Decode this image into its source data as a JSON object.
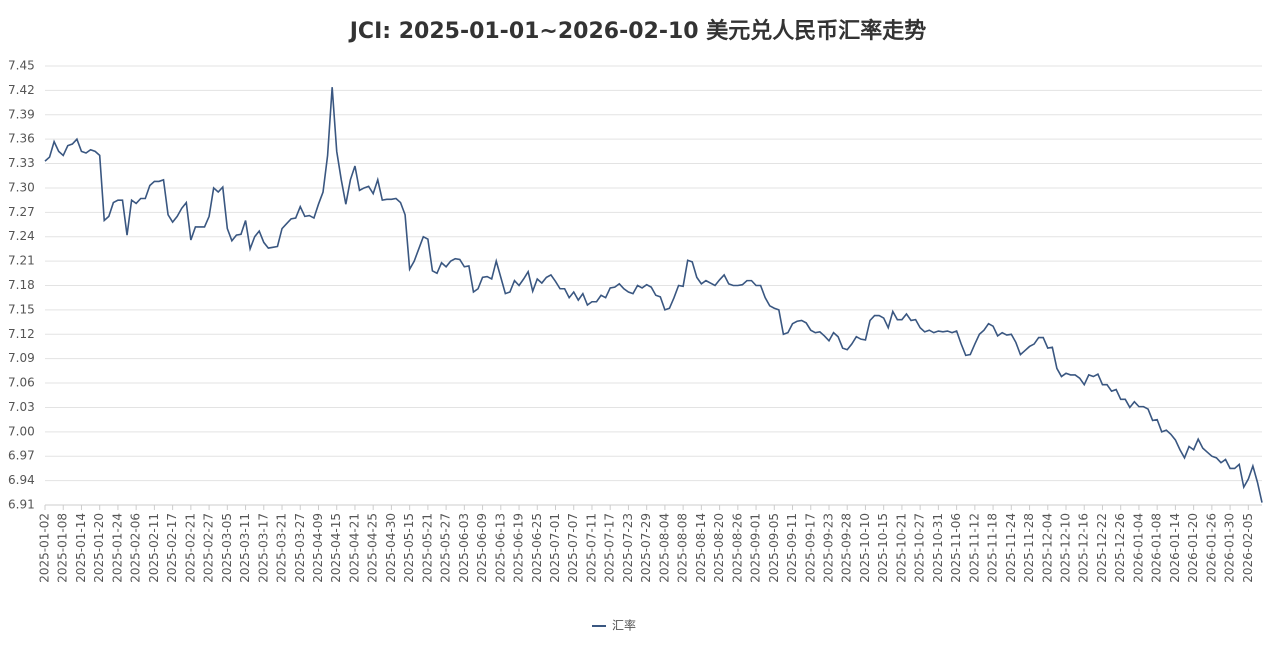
{
  "chart_data": {
    "type": "line",
    "title": "JCI: 2025-01-01~2026-02-10 美元兑人民币汇率走势",
    "categories": [
      "2025-01-02",
      null,
      null,
      null,
      "2025-01-08",
      null,
      null,
      null,
      "2025-01-14",
      null,
      null,
      null,
      "2025-01-20",
      null,
      null,
      null,
      "2025-01-24",
      null,
      null,
      null,
      "2025-02-06",
      null,
      null,
      null,
      "2025-02-11",
      null,
      null,
      null,
      "2025-02-17",
      null,
      null,
      null,
      "2025-02-21",
      null,
      null,
      null,
      "2025-02-27",
      null,
      null,
      null,
      "2025-03-05",
      null,
      null,
      null,
      "2025-03-11",
      null,
      null,
      null,
      "2025-03-17",
      null,
      null,
      null,
      "2025-03-21",
      null,
      null,
      null,
      "2025-03-27",
      null,
      null,
      null,
      "2025-04-09",
      null,
      null,
      null,
      "2025-04-15",
      null,
      null,
      null,
      "2025-04-21",
      null,
      null,
      null,
      "2025-04-25",
      null,
      null,
      null,
      "2025-04-30",
      null,
      null,
      null,
      "2025-05-15",
      null,
      null,
      null,
      "2025-05-21",
      null,
      null,
      null,
      "2025-05-27",
      null,
      null,
      null,
      "2025-06-03",
      null,
      null,
      null,
      "2025-06-09",
      null,
      null,
      null,
      "2025-06-13",
      null,
      null,
      null,
      "2025-06-19",
      null,
      null,
      null,
      "2025-06-25",
      null,
      null,
      null,
      "2025-07-01",
      null,
      null,
      null,
      "2025-07-07",
      null,
      null,
      null,
      "2025-07-11",
      null,
      null,
      null,
      "2025-07-17",
      null,
      null,
      null,
      "2025-07-23",
      null,
      null,
      null,
      "2025-07-29",
      null,
      null,
      null,
      "2025-08-04",
      null,
      null,
      null,
      "2025-08-08",
      null,
      null,
      null,
      "2025-08-14",
      null,
      null,
      null,
      "2025-08-20",
      null,
      null,
      null,
      "2025-08-26",
      null,
      null,
      null,
      "2025-09-01",
      null,
      null,
      null,
      "2025-09-05",
      null,
      null,
      null,
      "2025-09-11",
      null,
      null,
      null,
      "2025-09-17",
      null,
      null,
      null,
      "2025-09-23",
      null,
      null,
      null,
      "2025-09-28",
      null,
      null,
      null,
      "2025-10-10",
      null,
      null,
      null,
      "2025-10-15",
      null,
      null,
      null,
      "2025-10-21",
      null,
      null,
      null,
      "2025-10-27",
      null,
      null,
      null,
      "2025-10-31",
      null,
      null,
      null,
      "2025-11-06",
      null,
      null,
      null,
      "2025-11-12",
      null,
      null,
      null,
      "2025-11-18",
      null,
      null,
      null,
      "2025-11-24",
      null,
      null,
      null,
      "2025-11-28",
      null,
      null,
      null,
      "2025-12-04",
      null,
      null,
      null,
      "2025-12-10",
      null,
      null,
      null,
      "2025-12-16",
      null,
      null,
      null,
      "2025-12-22",
      null,
      null,
      null,
      "2025-12-26",
      null,
      null,
      null,
      "2026-01-04",
      null,
      null,
      null,
      "2026-01-08",
      null,
      null,
      null,
      "2026-01-14",
      null,
      null,
      null,
      "2026-01-20",
      null,
      null,
      null,
      "2026-01-26",
      null,
      null,
      null,
      "2026-01-30",
      null,
      null,
      null,
      "2026-02-05",
      null,
      null,
      null
    ],
    "series": [
      {
        "name": "汇率",
        "color": "#3a5781",
        "values": [
          7.333,
          7.338,
          7.357,
          7.345,
          7.34,
          7.352,
          7.354,
          7.36,
          7.345,
          7.343,
          7.347,
          7.345,
          7.34,
          7.26,
          7.265,
          7.282,
          7.285,
          7.285,
          7.242,
          7.285,
          7.281,
          7.287,
          7.287,
          7.303,
          7.308,
          7.308,
          7.31,
          7.267,
          7.258,
          7.265,
          7.275,
          7.282,
          7.236,
          7.252,
          7.252,
          7.252,
          7.265,
          7.3,
          7.295,
          7.301,
          7.25,
          7.235,
          7.242,
          7.243,
          7.26,
          7.225,
          7.24,
          7.247,
          7.233,
          7.226,
          7.227,
          7.228,
          7.25,
          7.256,
          7.262,
          7.263,
          7.277,
          7.265,
          7.266,
          7.263,
          7.28,
          7.295,
          7.34,
          7.424,
          7.345,
          7.31,
          7.28,
          7.31,
          7.327,
          7.297,
          7.3,
          7.302,
          7.293,
          7.31,
          7.285,
          7.286,
          7.286,
          7.287,
          7.282,
          7.267,
          7.2,
          7.21,
          7.225,
          7.24,
          7.237,
          7.198,
          7.195,
          7.208,
          7.203,
          7.21,
          7.213,
          7.212,
          7.203,
          7.204,
          7.172,
          7.176,
          7.19,
          7.191,
          7.188,
          7.21,
          7.19,
          7.17,
          7.172,
          7.186,
          7.18,
          7.188,
          7.197,
          7.173,
          7.188,
          7.183,
          7.19,
          7.193,
          7.185,
          7.176,
          7.176,
          7.165,
          7.172,
          7.162,
          7.17,
          7.156,
          7.16,
          7.16,
          7.168,
          7.165,
          7.177,
          7.178,
          7.182,
          7.176,
          7.172,
          7.17,
          7.18,
          7.177,
          7.181,
          7.178,
          7.168,
          7.166,
          7.15,
          7.152,
          7.165,
          7.18,
          7.179,
          7.211,
          7.209,
          7.19,
          7.182,
          7.186,
          7.183,
          7.18,
          7.187,
          7.193,
          7.182,
          7.18,
          7.18,
          7.181,
          7.186,
          7.186,
          7.18,
          7.18,
          7.165,
          7.155,
          7.152,
          7.15,
          7.12,
          7.122,
          7.133,
          7.136,
          7.137,
          7.134,
          7.125,
          7.122,
          7.123,
          7.118,
          7.112,
          7.122,
          7.117,
          7.103,
          7.101,
          7.108,
          7.117,
          7.114,
          7.113,
          7.137,
          7.143,
          7.143,
          7.14,
          7.128,
          7.148,
          7.138,
          7.138,
          7.145,
          7.137,
          7.138,
          7.128,
          7.123,
          7.125,
          7.122,
          7.124,
          7.123,
          7.124,
          7.122,
          7.124,
          7.108,
          7.094,
          7.095,
          7.108,
          7.12,
          7.125,
          7.133,
          7.13,
          7.118,
          7.122,
          7.119,
          7.12,
          7.11,
          7.095,
          7.1,
          7.105,
          7.108,
          7.116,
          7.116,
          7.103,
          7.104,
          7.078,
          7.068,
          7.072,
          7.07,
          7.07,
          7.066,
          7.058,
          7.07,
          7.068,
          7.071,
          7.058,
          7.058,
          7.05,
          7.052,
          7.04,
          7.04,
          7.03,
          7.037,
          7.031,
          7.031,
          7.028,
          7.014,
          7.015,
          7.0,
          7.002,
          6.997,
          6.99,
          6.978,
          6.968,
          6.982,
          6.978,
          6.991,
          6.98,
          6.975,
          6.97,
          6.968,
          6.962,
          6.966,
          6.955,
          6.955,
          6.96,
          6.932,
          6.942,
          6.958,
          6.938,
          6.913
        ]
      }
    ],
    "ylim": [
      6.91,
      7.45
    ],
    "yticks": [
      6.91,
      6.94,
      6.97,
      {
        "value": 7.0,
        "label": "7.00"
      },
      7.03,
      7.06,
      7.09,
      7.12,
      7.15,
      7.18,
      7.21,
      7.24,
      7.27,
      {
        "value": 7.3,
        "label": "7.30"
      },
      7.33,
      7.36,
      7.39,
      7.42,
      7.45
    ],
    "grid": true,
    "legend": "bottom"
  }
}
